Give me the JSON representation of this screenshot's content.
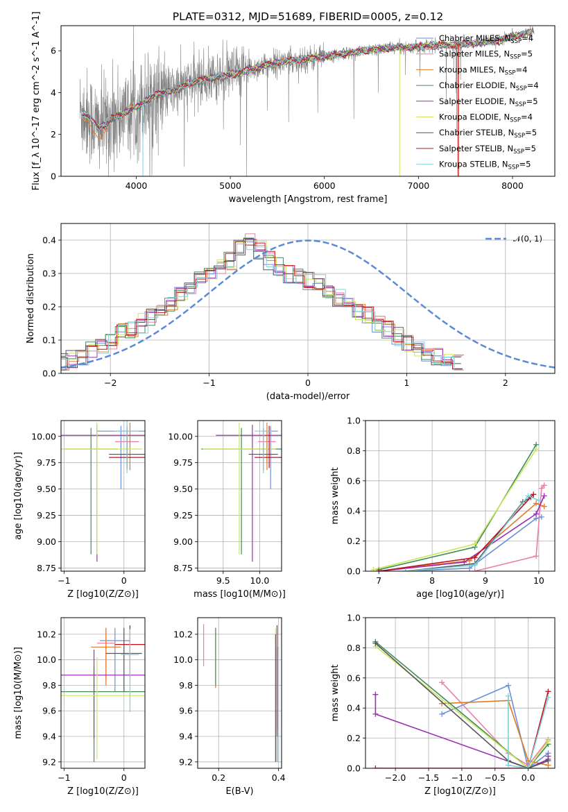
{
  "figure": {
    "title": "PLATE=0312, MJD=51689, FIBERID=0005, z=0.12"
  },
  "series_styles": [
    {
      "name": "Chabrier MILES, N$_{SSP}$=4",
      "legend": "Chabrier MILES, N_SSP=4",
      "color": "#6a8fd8"
    },
    {
      "name": "Salpeter MILES, N$_{SSP}$=5",
      "legend": "Salpeter MILES, N_SSP=5",
      "color": "#e87fa8"
    },
    {
      "name": "Kroupa MILES, N$_{SSP}$=4",
      "legend": "Kroupa MILES, N_SSP=4",
      "color": "#e07a26"
    },
    {
      "name": "Chabrier ELODIE, N$_{SSP}$=4",
      "legend": "Chabrier ELODIE, N_SSP=4",
      "color": "#3e8c5a"
    },
    {
      "name": "Salpeter ELODIE, N$_{SSP}$=5",
      "legend": "Salpeter ELODIE, N_SSP=5",
      "color": "#9a2fb3"
    },
    {
      "name": "Kroupa ELODIE, N$_{SSP}$=4",
      "legend": "Kroupa ELODIE, N_SSP=4",
      "color": "#c8e85a"
    },
    {
      "name": "Chabrier STELIB, N$_{SSP}$=5",
      "legend": "Chabrier STELIB, N_SSP=5",
      "color": "#555555"
    },
    {
      "name": "Salpeter STELIB, N$_{SSP}$=5",
      "legend": "Salpeter STELIB, N_SSP=5",
      "color": "#c0101a"
    },
    {
      "name": "Kroupa STELIB, N$_{SSP}$=5",
      "legend": "Kroupa STELIB, N_SSP=5",
      "color": "#7fd0d8"
    }
  ],
  "chart_data": [
    {
      "id": "spectrum",
      "type": "line",
      "title": "PLATE=0312, MJD=51689, FIBERID=0005, z=0.12",
      "xlabel": "wavelength [Angstrom, rest frame]",
      "ylabel": "Flux [f_λ 10^-17 erg cm^-2 s^-1 A^-1]",
      "xlim": [
        3200,
        8450
      ],
      "ylim": [
        0,
        7.2
      ],
      "xticks": [
        4000,
        5000,
        6000,
        7000,
        8000
      ],
      "yticks": [
        0,
        2,
        4,
        6
      ],
      "data_color": "#808080",
      "continuum_knots": [
        [
          3400,
          3.1
        ],
        [
          3500,
          2.85
        ],
        [
          3600,
          2.3
        ],
        [
          3700,
          2.6
        ],
        [
          3800,
          2.9
        ],
        [
          3900,
          3.1
        ],
        [
          4000,
          3.3
        ],
        [
          4100,
          3.6
        ],
        [
          4200,
          3.9
        ],
        [
          4300,
          4.0
        ],
        [
          4400,
          4.1
        ],
        [
          4500,
          4.3
        ],
        [
          4600,
          4.5
        ],
        [
          4700,
          4.6
        ],
        [
          4800,
          4.7
        ],
        [
          4900,
          4.75
        ],
        [
          5000,
          4.85
        ],
        [
          5200,
          5.1
        ],
        [
          5400,
          5.35
        ],
        [
          5600,
          5.5
        ],
        [
          5800,
          5.6
        ],
        [
          6000,
          5.7
        ],
        [
          6200,
          5.85
        ],
        [
          6400,
          6.0
        ],
        [
          6600,
          6.1
        ],
        [
          6800,
          6.15
        ],
        [
          7000,
          6.2
        ],
        [
          7200,
          6.25
        ],
        [
          7400,
          6.3
        ],
        [
          7600,
          6.35
        ],
        [
          7800,
          6.45
        ],
        [
          8000,
          6.65
        ],
        [
          8200,
          6.9
        ]
      ],
      "legend_location": "upper right"
    },
    {
      "id": "residuals",
      "type": "step",
      "xlabel": "(data-model)/error",
      "ylabel": "Normed distribution",
      "xlim": [
        -2.5,
        2.5
      ],
      "ylim": [
        0,
        0.45
      ],
      "xticks": [
        -2,
        -1,
        0,
        1,
        2
      ],
      "yticks": [
        0.0,
        0.1,
        0.2,
        0.3,
        0.4
      ],
      "reference": {
        "name": "N(0,1)",
        "legend": "𝒩(0, 1)",
        "mean": 0,
        "sigma": 1,
        "color": "#5b8ad4"
      },
      "bin_edges_start": -2.5,
      "bin_width": 0.1,
      "base_hist": [
        0.03,
        0.04,
        0.05,
        0.07,
        0.09,
        0.1,
        0.12,
        0.13,
        0.15,
        0.17,
        0.19,
        0.21,
        0.23,
        0.26,
        0.28,
        0.3,
        0.32,
        0.34,
        0.37,
        0.4,
        0.37,
        0.34,
        0.32,
        0.3,
        0.29,
        0.28,
        0.27,
        0.25,
        0.23,
        0.21,
        0.19,
        0.17,
        0.15,
        0.13,
        0.11,
        0.09,
        0.07,
        0.06,
        0.05,
        0.04,
        0.03
      ],
      "legend_location": "upper right"
    },
    {
      "id": "age_vs_Z",
      "type": "errorbar",
      "xlabel": "Z [log10(Z/Z⊙)]",
      "ylabel": "age [log10(age/yr)]",
      "xlim": [
        -1.05,
        0.35
      ],
      "ylim": [
        8.72,
        10.15
      ],
      "xticks": [
        -1,
        0
      ],
      "yticks": [
        8.75,
        9.0,
        9.25,
        9.5,
        9.75,
        10.0
      ],
      "points": [
        {
          "series": 0,
          "x": -0.05,
          "y": 10.05,
          "xerr": 0.4,
          "yerr_lo": 0.55,
          "yerr_hi": 0.05
        },
        {
          "series": 1,
          "x": 0.05,
          "y": 9.95,
          "xerr": 0.2,
          "yerr_lo": 0.2,
          "yerr_hi": 0.1
        },
        {
          "series": 2,
          "x": 0.1,
          "y": 9.83,
          "xerr": 0.3,
          "yerr_lo": 0.15,
          "yerr_hi": 0.3
        },
        {
          "series": 3,
          "x": -0.55,
          "y": 9.88,
          "xerr": 0.45,
          "yerr_lo": 1.0,
          "yerr_hi": 0.2
        },
        {
          "series": 4,
          "x": -0.45,
          "y": 10.01,
          "xerr": 0.95,
          "yerr_lo": 1.2,
          "yerr_hi": 0.1
        },
        {
          "series": 5,
          "x": -0.45,
          "y": 9.88,
          "xerr": 0.75,
          "yerr_lo": 1.0,
          "yerr_hi": 0.25
        },
        {
          "series": 6,
          "x": 0.05,
          "y": 9.83,
          "xerr": 0.3,
          "yerr_lo": 0.15,
          "yerr_hi": 0.25
        },
        {
          "series": 7,
          "x": 0.05,
          "y": 9.8,
          "xerr": 0.3,
          "yerr_lo": 0.1,
          "yerr_hi": 0.3
        },
        {
          "series": 8,
          "x": 0.05,
          "y": 10.05,
          "xerr": 0.2,
          "yerr_lo": 0.4,
          "yerr_hi": 0.1
        }
      ]
    },
    {
      "id": "age_vs_mass",
      "type": "errorbar",
      "xlabel": "mass [log10(M/M⊙)]",
      "ylabel": "",
      "xlim": [
        9.15,
        10.3
      ],
      "ylim": [
        8.72,
        10.15
      ],
      "xticks": [
        9.5,
        10.0
      ],
      "yticks": [
        8.75,
        9.0,
        9.25,
        9.5,
        9.75,
        10.0
      ],
      "points": [
        {
          "series": 0,
          "x": 10.15,
          "y": 10.05,
          "xerr": 0.1,
          "yerr_lo": 0.55,
          "yerr_hi": 0.05
        },
        {
          "series": 1,
          "x": 10.1,
          "y": 9.95,
          "xerr": 0.12,
          "yerr_lo": 0.2,
          "yerr_hi": 0.1
        },
        {
          "series": 2,
          "x": 10.1,
          "y": 9.83,
          "xerr": 0.12,
          "yerr_lo": 0.15,
          "yerr_hi": 0.3
        },
        {
          "series": 3,
          "x": 9.75,
          "y": 9.88,
          "xerr": 0.55,
          "yerr_lo": 1.0,
          "yerr_hi": 0.2
        },
        {
          "series": 4,
          "x": 9.9,
          "y": 10.01,
          "xerr": 0.5,
          "yerr_lo": 1.2,
          "yerr_hi": 0.1
        },
        {
          "series": 5,
          "x": 9.72,
          "y": 9.88,
          "xerr": 0.5,
          "yerr_lo": 1.0,
          "yerr_hi": 0.25
        },
        {
          "series": 6,
          "x": 10.05,
          "y": 9.83,
          "xerr": 0.2,
          "yerr_lo": 0.15,
          "yerr_hi": 0.25
        },
        {
          "series": 7,
          "x": 10.13,
          "y": 9.8,
          "xerr": 0.2,
          "yerr_lo": 0.1,
          "yerr_hi": 0.3
        },
        {
          "series": 8,
          "x": 10.05,
          "y": 10.05,
          "xerr": 0.12,
          "yerr_lo": 0.4,
          "yerr_hi": 0.1
        }
      ]
    },
    {
      "id": "weight_vs_age",
      "type": "line",
      "xlabel": "age [log10(age/yr)]",
      "ylabel": "mass weight",
      "xlim": [
        6.75,
        10.3
      ],
      "ylim": [
        0,
        1.0
      ],
      "xticks": [
        7,
        8,
        9,
        10
      ],
      "yticks": [
        0.0,
        0.2,
        0.4,
        0.6,
        0.8,
        1.0
      ],
      "series": [
        {
          "series": 0,
          "x": [
            7.5,
            8.7,
            9.95,
            10.05
          ],
          "y": [
            0.0,
            0.02,
            0.35,
            0.36
          ]
        },
        {
          "series": 1,
          "x": [
            8.8,
            9.95,
            10.05,
            10.1
          ],
          "y": [
            0.0,
            0.1,
            0.55,
            0.57
          ]
        },
        {
          "series": 2,
          "x": [
            7.0,
            8.7,
            9.95,
            10.1
          ],
          "y": [
            0.0,
            0.07,
            0.45,
            0.43
          ]
        },
        {
          "series": 3,
          "x": [
            7.0,
            8.8,
            9.95
          ],
          "y": [
            0.01,
            0.16,
            0.84
          ]
        },
        {
          "series": 4,
          "x": [
            7.0,
            8.6,
            9.95,
            10.1
          ],
          "y": [
            0.0,
            0.06,
            0.38,
            0.5
          ]
        },
        {
          "series": 5,
          "x": [
            6.9,
            8.8,
            9.95
          ],
          "y": [
            0.01,
            0.18,
            0.81
          ]
        },
        {
          "series": 6,
          "x": [
            7.5,
            8.8,
            9.7,
            9.85
          ],
          "y": [
            0.0,
            0.05,
            0.46,
            0.49
          ]
        },
        {
          "series": 7,
          "x": [
            7.0,
            8.8,
            9.9
          ],
          "y": [
            0.0,
            0.09,
            0.51
          ]
        },
        {
          "series": 8,
          "x": [
            7.5,
            8.8,
            9.8,
            10.0
          ],
          "y": [
            0.0,
            0.04,
            0.5,
            0.47
          ]
        }
      ]
    },
    {
      "id": "mass_vs_Z",
      "type": "errorbar",
      "xlabel": "Z [log10(Z/Z⊙)]",
      "ylabel": "mass [log10(M/M⊙)]",
      "xlim": [
        -1.05,
        0.35
      ],
      "ylim": [
        9.15,
        10.33
      ],
      "xticks": [
        -1,
        0
      ],
      "yticks": [
        9.2,
        9.4,
        9.6,
        9.8,
        10.0,
        10.2
      ],
      "points": [
        {
          "series": 0,
          "x": -0.15,
          "y": 10.15,
          "xerr": 0.25,
          "yerr_lo": 0.4,
          "yerr_hi": 0.1
        },
        {
          "series": 1,
          "x": -0.3,
          "y": 10.13,
          "xerr": 0.15,
          "yerr_lo": 0.3,
          "yerr_hi": 0.12
        },
        {
          "series": 2,
          "x": -0.3,
          "y": 10.1,
          "xerr": 0.25,
          "yerr_lo": 0.3,
          "yerr_hi": 0.15
        },
        {
          "series": 3,
          "x": -0.5,
          "y": 9.75,
          "xerr": 0.85,
          "yerr_lo": 0.55,
          "yerr_hi": 0.2
        },
        {
          "series": 4,
          "x": -0.5,
          "y": 9.88,
          "xerr": 0.85,
          "yerr_lo": 0.5,
          "yerr_hi": 0.2
        },
        {
          "series": 5,
          "x": -0.45,
          "y": 9.72,
          "xerr": 0.85,
          "yerr_lo": 0.5,
          "yerr_hi": 0.3
        },
        {
          "series": 6,
          "x": 0.0,
          "y": 10.05,
          "xerr": 0.3,
          "yerr_lo": 0.3,
          "yerr_hi": 0.2
        },
        {
          "series": 7,
          "x": 0.1,
          "y": 10.12,
          "xerr": 0.25,
          "yerr_lo": 0.25,
          "yerr_hi": 0.15
        },
        {
          "series": 8,
          "x": 0.1,
          "y": 10.04,
          "xerr": 0.15,
          "yerr_lo": 0.45,
          "yerr_hi": 0.2
        }
      ]
    },
    {
      "id": "mass_vs_ebv",
      "type": "errorbar",
      "xlabel": "E(B-V)",
      "ylabel": "",
      "xlim": [
        0.13,
        0.41
      ],
      "ylim": [
        9.15,
        10.33
      ],
      "xticks": [
        0.2,
        0.4
      ],
      "yticks": [
        9.2,
        9.4,
        9.6,
        9.8,
        10.0,
        10.2
      ],
      "points": [
        {
          "series": 0,
          "x": 0.395,
          "y": 9.85,
          "xerr": 0.0,
          "yerr_lo": 0.65,
          "yerr_hi": 0.25
        },
        {
          "series": 1,
          "x": 0.15,
          "y": 10.1,
          "xerr": 0.0,
          "yerr_lo": 0.15,
          "yerr_hi": 0.18
        },
        {
          "series": 2,
          "x": 0.19,
          "y": 10.0,
          "xerr": 0.0,
          "yerr_lo": 0.22,
          "yerr_hi": 0.25
        },
        {
          "series": 3,
          "x": 0.19,
          "y": 10.0,
          "xerr": 0.0,
          "yerr_lo": 0.2,
          "yerr_hi": 0.25
        },
        {
          "series": 4,
          "x": 0.395,
          "y": 9.8,
          "xerr": 0.0,
          "yerr_lo": 0.35,
          "yerr_hi": 0.3
        },
        {
          "series": 5,
          "x": 0.39,
          "y": 9.6,
          "xerr": 0.0,
          "yerr_lo": 0.4,
          "yerr_hi": 0.65
        },
        {
          "series": 6,
          "x": 0.39,
          "y": 9.7,
          "xerr": 0.0,
          "yerr_lo": 0.5,
          "yerr_hi": 0.5
        },
        {
          "series": 7,
          "x": 0.395,
          "y": 9.85,
          "xerr": 0.0,
          "yerr_lo": 0.45,
          "yerr_hi": 0.42
        },
        {
          "series": 8,
          "x": 0.4,
          "y": 9.7,
          "xerr": 0.0,
          "yerr_lo": 0.5,
          "yerr_hi": 0.4
        }
      ]
    },
    {
      "id": "weight_vs_Z",
      "type": "line",
      "xlabel": "Z [log10(Z/Z⊙)]",
      "ylabel": "mass weight",
      "xlim": [
        -2.45,
        0.4
      ],
      "ylim": [
        0,
        1.0
      ],
      "xticks": [
        -2.0,
        -1.5,
        -1.0,
        -0.5,
        0.0
      ],
      "yticks": [
        0.0,
        0.2,
        0.4,
        0.6,
        0.8,
        1.0
      ],
      "series": [
        {
          "series": 0,
          "x": [
            -1.3,
            -0.3,
            0.0,
            0.3
          ],
          "y": [
            0.36,
            0.55,
            0.0,
            0.1
          ]
        },
        {
          "series": 1,
          "x": [
            -1.3,
            -0.3,
            0.0,
            0.3
          ],
          "y": [
            0.57,
            0.1,
            0.02,
            0.19
          ]
        },
        {
          "series": 2,
          "x": [
            -1.3,
            -0.3,
            0.0,
            0.3
          ],
          "y": [
            0.43,
            0.45,
            0.05,
            0.02
          ]
        },
        {
          "series": 3,
          "x": [
            -2.3,
            0.0,
            0.3
          ],
          "y": [
            0.84,
            0.0,
            0.16
          ]
        },
        {
          "series": 4,
          "x": [
            -2.3,
            -2.3,
            0.0,
            0.3,
            0.3
          ],
          "y": [
            0.49,
            0.36,
            0.0,
            0.06,
            0.08
          ]
        },
        {
          "series": 5,
          "x": [
            -2.3,
            0.0,
            0.3
          ],
          "y": [
            0.81,
            0.0,
            0.18
          ]
        },
        {
          "series": 6,
          "x": [
            -2.3,
            -0.3,
            0.0,
            0.3
          ],
          "y": [
            0.83,
            0.05,
            0.0,
            0.05
          ]
        },
        {
          "series": 7,
          "x": [
            -2.3,
            0.0,
            0.3
          ],
          "y": [
            0.0,
            0.0,
            0.51
          ]
        },
        {
          "series": 8,
          "x": [
            -0.3,
            -0.3,
            0.0,
            0.3
          ],
          "y": [
            0.48,
            0.02,
            0.0,
            0.47
          ]
        }
      ]
    }
  ]
}
